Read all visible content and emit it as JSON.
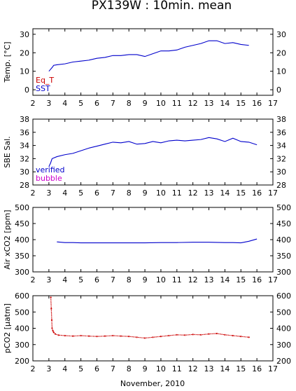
{
  "figure": {
    "title": "PX139W : 10min. mean",
    "xlabel": "November, 2010"
  },
  "chart_data": [
    {
      "type": "line",
      "ylabel": "Temp. [°C]",
      "xlim": [
        2,
        17
      ],
      "ylim": [
        -3,
        33
      ],
      "yticks": [
        0,
        10,
        20,
        30
      ],
      "xticks": [
        2,
        3,
        4,
        5,
        6,
        7,
        8,
        9,
        10,
        11,
        12,
        13,
        14,
        15,
        16,
        17
      ],
      "legend_position": "bottom-left",
      "series": [
        {
          "name": "Eq_T",
          "color": "#cc0000",
          "x": [],
          "y": []
        },
        {
          "name": "SST",
          "color": "#0000cc",
          "x": [
            3.0,
            3.1,
            3.2,
            3.3,
            3.5,
            4.0,
            4.5,
            5.0,
            5.5,
            6.0,
            6.5,
            7.0,
            7.5,
            8.0,
            8.5,
            9.0,
            9.5,
            10.0,
            10.5,
            11.0,
            11.5,
            12.0,
            12.5,
            13.0,
            13.5,
            14.0,
            14.5,
            15.0,
            15.5
          ],
          "y": [
            10,
            11,
            12,
            13.2,
            13.5,
            14,
            15,
            15.5,
            16,
            17,
            17.5,
            18.5,
            18.5,
            19,
            19,
            18,
            19.5,
            21,
            21,
            21.5,
            23,
            24,
            25,
            26.5,
            26.5,
            25,
            25.5,
            24.5,
            24
          ]
        }
      ]
    },
    {
      "type": "line",
      "ylabel": "SBE Sal.",
      "xlim": [
        2,
        17
      ],
      "ylim": [
        28,
        38
      ],
      "yticks": [
        28,
        30,
        32,
        34,
        36,
        38
      ],
      "xticks": [
        2,
        3,
        4,
        5,
        6,
        7,
        8,
        9,
        10,
        11,
        12,
        13,
        14,
        15,
        16,
        17
      ],
      "legend_position": "bottom-left",
      "series": [
        {
          "name": "verified",
          "color": "#0000cc",
          "x": [
            3.0,
            3.1,
            3.2,
            3.5,
            4.0,
            4.5,
            5.0,
            5.5,
            6.0,
            6.5,
            7.0,
            7.5,
            8.0,
            8.5,
            9.0,
            9.5,
            10.0,
            10.5,
            11.0,
            11.5,
            12.0,
            12.5,
            13.0,
            13.5,
            14.0,
            14.5,
            15.0,
            15.5,
            16.0
          ],
          "y": [
            30.8,
            31.3,
            32.0,
            32.3,
            32.6,
            32.8,
            33.2,
            33.6,
            33.9,
            34.2,
            34.5,
            34.4,
            34.6,
            34.2,
            34.3,
            34.6,
            34.4,
            34.7,
            34.8,
            34.7,
            34.8,
            34.9,
            35.2,
            35.0,
            34.6,
            35.1,
            34.6,
            34.5,
            34.1
          ]
        },
        {
          "name": "bubble",
          "color": "#cc00cc",
          "x": [],
          "y": []
        }
      ]
    },
    {
      "type": "line",
      "ylabel": "Air xCO2 [ppm]",
      "xlim": [
        2,
        17
      ],
      "ylim": [
        300,
        500
      ],
      "yticks": [
        300,
        350,
        400,
        450,
        500
      ],
      "xticks": [
        2,
        3,
        4,
        5,
        6,
        7,
        8,
        9,
        10,
        11,
        12,
        13,
        14,
        15,
        16,
        17
      ],
      "series": [
        {
          "name": "Air xCO2",
          "color": "#0000cc",
          "x": [
            3.5,
            4.0,
            4.5,
            5.0,
            6.0,
            7.0,
            8.0,
            9.0,
            10.0,
            11.0,
            12.0,
            13.0,
            14.0,
            14.5,
            15.0,
            15.5,
            16.0
          ],
          "y": [
            393,
            391,
            391,
            390,
            390,
            390,
            390,
            390,
            391,
            391,
            392,
            392,
            391,
            391,
            390,
            395,
            402
          ]
        }
      ]
    },
    {
      "type": "scatter",
      "ylabel": "pCO2 [μatm]",
      "xlim": [
        2,
        17
      ],
      "ylim": [
        200,
        600
      ],
      "yticks": [
        200,
        300,
        400,
        500,
        600
      ],
      "xticks": [
        2,
        3,
        4,
        5,
        6,
        7,
        8,
        9,
        10,
        11,
        12,
        13,
        14,
        15,
        16,
        17
      ],
      "series": [
        {
          "name": "pCO2",
          "color": "#cc0000",
          "x": [
            3.12,
            3.15,
            3.18,
            3.2,
            3.25,
            3.3,
            3.4,
            3.6,
            4.0,
            4.5,
            5.0,
            5.5,
            6.0,
            6.5,
            7.0,
            7.5,
            8.0,
            8.5,
            9.0,
            9.5,
            10.0,
            10.5,
            11.0,
            11.5,
            12.0,
            12.5,
            13.0,
            13.5,
            14.0,
            14.5,
            15.0,
            15.5
          ],
          "y": [
            590,
            520,
            450,
            400,
            385,
            375,
            365,
            358,
            355,
            352,
            355,
            352,
            350,
            352,
            355,
            352,
            350,
            345,
            340,
            345,
            350,
            355,
            360,
            358,
            362,
            360,
            365,
            368,
            360,
            355,
            350,
            345
          ]
        }
      ]
    }
  ]
}
